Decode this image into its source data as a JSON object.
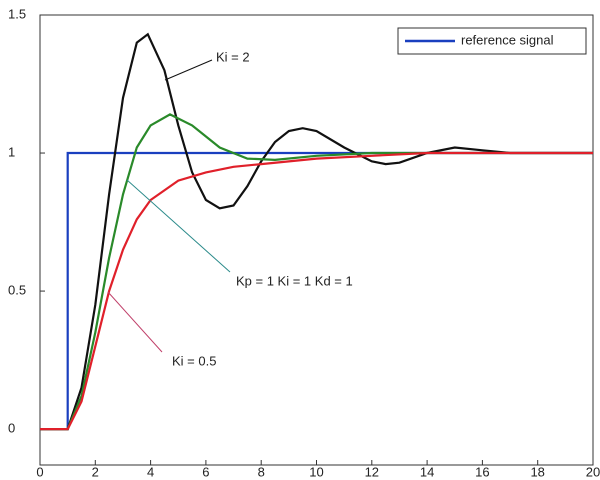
{
  "chart_data": {
    "type": "line",
    "xlim": [
      0,
      20
    ],
    "ylim": [
      -0.13,
      1.5
    ],
    "xticks": [
      0,
      2,
      4,
      6,
      8,
      10,
      12,
      14,
      16,
      18,
      20
    ],
    "yticks": [
      0,
      0.5,
      1,
      1.5
    ],
    "legend": "top-right",
    "series": [
      {
        "name": "reference signal",
        "color": "#1a3fbf",
        "x": [
          0,
          1,
          1,
          20
        ],
        "values": [
          0,
          0,
          1,
          1
        ]
      },
      {
        "name": "Ki = 2",
        "color": "#111111",
        "x": [
          0,
          1,
          1.5,
          2,
          2.5,
          3,
          3.5,
          3.9,
          4.5,
          5,
          5.5,
          6,
          6.5,
          7,
          7.5,
          8,
          8.5,
          9,
          9.5,
          10,
          11,
          12,
          12.5,
          13,
          14,
          15,
          16,
          17,
          20
        ],
        "values": [
          0,
          0,
          0.15,
          0.45,
          0.85,
          1.2,
          1.4,
          1.43,
          1.3,
          1.1,
          0.93,
          0.83,
          0.8,
          0.81,
          0.88,
          0.97,
          1.04,
          1.08,
          1.09,
          1.08,
          1.02,
          0.97,
          0.96,
          0.965,
          1.0,
          1.02,
          1.01,
          1.0,
          1.0
        ]
      },
      {
        "name": "Kp = 1  Ki = 1  Kd = 1",
        "color": "#2a8a2a",
        "x": [
          0,
          1,
          1.5,
          2,
          2.5,
          3,
          3.5,
          4,
          4.7,
          5.5,
          6.5,
          7.5,
          8.5,
          10,
          12,
          20
        ],
        "values": [
          0,
          0,
          0.12,
          0.35,
          0.62,
          0.85,
          1.02,
          1.1,
          1.14,
          1.1,
          1.02,
          0.98,
          0.975,
          0.99,
          1.0,
          1.0
        ]
      },
      {
        "name": "Ki = 0.5",
        "color": "#e0202a",
        "x": [
          0,
          1,
          1.5,
          2,
          2.5,
          3,
          3.5,
          4,
          5,
          6,
          7,
          8,
          10,
          12,
          14,
          20
        ],
        "values": [
          0,
          0,
          0.1,
          0.3,
          0.5,
          0.65,
          0.76,
          0.83,
          0.9,
          0.93,
          0.95,
          0.96,
          0.98,
          0.99,
          1.0,
          1.0
        ]
      }
    ]
  }
}
